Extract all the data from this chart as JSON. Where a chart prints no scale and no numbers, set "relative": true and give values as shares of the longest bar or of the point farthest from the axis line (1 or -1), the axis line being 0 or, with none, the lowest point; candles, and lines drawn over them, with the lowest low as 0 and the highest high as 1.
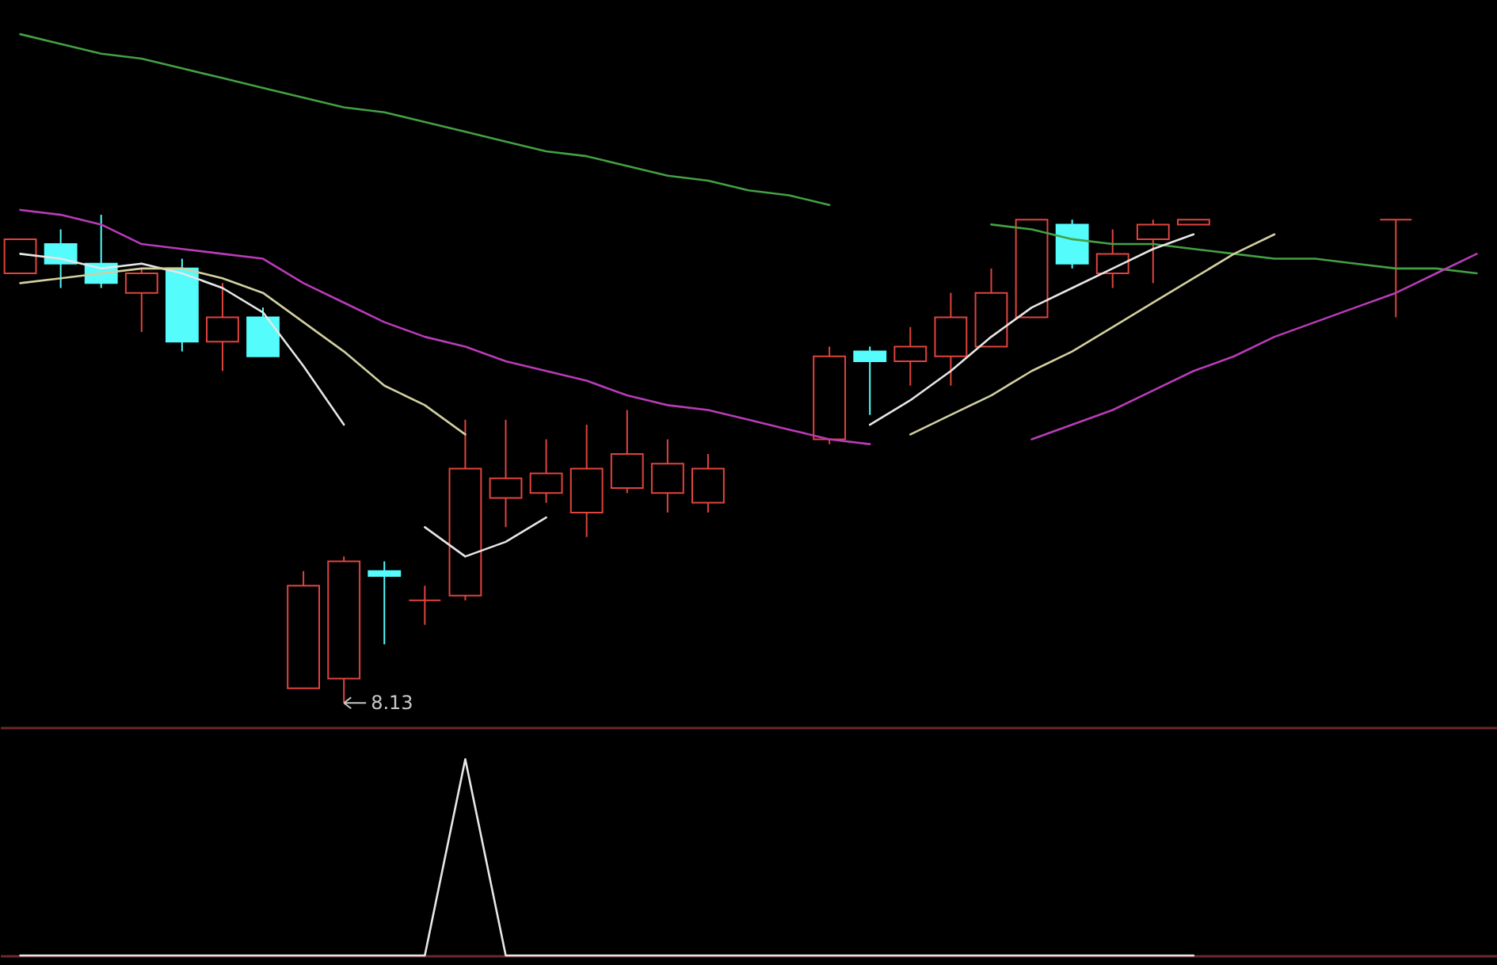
{
  "chart_data": [
    {
      "type": "candlestick",
      "relative": true,
      "ylim": [
        -0.05,
        1.44
      ],
      "categories": [
        null,
        null,
        null,
        null,
        null,
        null,
        null,
        null,
        null,
        null,
        null,
        null,
        null,
        null,
        null,
        null,
        null,
        null,
        null,
        null,
        null,
        null,
        null,
        null,
        null,
        null,
        null,
        null,
        null,
        null,
        null,
        null,
        null,
        null,
        null,
        null,
        null
      ],
      "ohlc": [
        [
          0.88,
          0.95,
          0.88,
          0.95
        ],
        [
          0.94,
          0.97,
          0.85,
          0.9
        ],
        [
          0.9,
          1.0,
          0.85,
          0.86
        ],
        [
          0.84,
          0.89,
          0.76,
          0.88
        ],
        [
          0.89,
          0.91,
          0.72,
          0.74
        ],
        [
          0.74,
          0.86,
          0.68,
          0.79
        ],
        [
          0.79,
          0.81,
          0.71,
          0.71
        ],
        [
          0.03,
          0.27,
          0.03,
          0.24
        ],
        [
          0.05,
          0.3,
          0,
          0.29
        ],
        [
          0.27,
          0.29,
          0.12,
          0.26
        ],
        [
          0.21,
          0.24,
          0.16,
          0.21
        ],
        [
          0.22,
          0.58,
          0.21,
          0.48
        ],
        [
          0.42,
          0.58,
          0.36,
          0.46
        ],
        [
          0.43,
          0.54,
          0.41,
          0.47
        ],
        [
          0.39,
          0.57,
          0.34,
          0.48
        ],
        [
          0.44,
          0.6,
          0.43,
          0.51
        ],
        [
          0.43,
          0.54,
          0.39,
          0.49
        ],
        [
          0.41,
          0.51,
          0.39,
          0.48
        ],
        null,
        null,
        [
          0.54,
          0.73,
          0.53,
          0.71
        ],
        [
          0.72,
          0.73,
          0.59,
          0.7
        ],
        [
          0.7,
          0.77,
          0.65,
          0.73
        ],
        [
          0.71,
          0.84,
          0.65,
          0.79
        ],
        [
          0.73,
          0.89,
          0.73,
          0.84
        ],
        [
          0.79,
          0.99,
          0.79,
          0.99
        ],
        [
          0.98,
          0.99,
          0.89,
          0.9
        ],
        [
          0.88,
          0.97,
          0.85,
          0.92
        ],
        [
          0.95,
          0.99,
          0.86,
          0.98
        ],
        [
          0.98,
          0.99,
          0.98,
          0.99
        ],
        null,
        null,
        null,
        null,
        [
          0.99,
          0.99,
          0.79,
          0.99
        ],
        null,
        null
      ],
      "colors": [
        "#e0443e",
        "#54fcfc",
        "#54fcfc",
        "#e0443e",
        "#54fcfc",
        "#e0443e",
        "#54fcfc",
        "#e0443e",
        "#e0443e",
        "#54fcfc",
        "#e0443e",
        "#e0443e",
        "#e0443e",
        "#e0443e",
        "#e0443e",
        "#e0443e",
        "#e0443e",
        "#e0443e",
        null,
        null,
        "#e0443e",
        "#54fcfc",
        "#e0443e",
        "#e0443e",
        "#e0443e",
        "#e0443e",
        "#54fcfc",
        "#e0443e",
        "#e0443e",
        "#e0443e",
        null,
        null,
        null,
        null,
        "#e0443e",
        null,
        null
      ],
      "series": [
        {
          "type": "line",
          "color": "#45a045",
          "values": [
            1.37,
            1.35,
            1.33,
            1.32,
            1.3,
            1.28,
            1.26,
            1.24,
            1.22,
            1.21,
            1.19,
            1.17,
            1.15,
            1.13,
            1.12,
            1.1,
            1.08,
            1.07,
            1.05,
            1.04,
            1.02,
            null,
            null,
            null,
            0.98,
            0.97,
            0.95,
            0.94,
            0.94,
            0.93,
            0.92,
            0.91,
            0.91,
            0.9,
            0.89,
            0.89,
            0.88
          ]
        },
        {
          "type": "line",
          "color": "#b83cb8",
          "values": [
            1.01,
            1.0,
            0.98,
            0.94,
            0.93,
            0.92,
            0.91,
            0.86,
            0.82,
            0.78,
            0.75,
            0.73,
            0.7,
            0.68,
            0.66,
            0.63,
            0.61,
            0.6,
            0.58,
            0.56,
            0.54,
            0.53,
            null,
            null,
            null,
            0.54,
            0.57,
            0.6,
            0.64,
            0.68,
            0.71,
            0.75,
            0.78,
            0.81,
            0.84,
            0.88,
            0.92
          ]
        },
        {
          "type": "line",
          "color": "#e6e6e6",
          "values": [
            0.92,
            0.91,
            0.89,
            0.9,
            0.88,
            0.85,
            0.8,
            0.69,
            0.57,
            null,
            0.36,
            0.3,
            0.33,
            0.38,
            null,
            null,
            null,
            null,
            null,
            null,
            null,
            0.57,
            0.62,
            0.68,
            0.75,
            0.81,
            0.85,
            0.89,
            0.93,
            0.96,
            null,
            null,
            null,
            null,
            null,
            null,
            null
          ]
        },
        {
          "type": "line",
          "color": "#d2d0a0",
          "values": [
            0.86,
            0.87,
            0.88,
            0.89,
            0.89,
            0.87,
            0.84,
            0.78,
            0.72,
            0.65,
            0.61,
            0.55,
            null,
            null,
            null,
            null,
            null,
            null,
            null,
            null,
            null,
            null,
            0.55,
            0.59,
            0.63,
            0.68,
            0.72,
            0.77,
            0.82,
            0.87,
            0.92,
            0.96,
            null,
            null,
            null,
            null,
            null
          ]
        }
      ],
      "annotations": [
        "8.13"
      ]
    },
    {
      "type": "line",
      "relative": true,
      "categories": [
        null,
        null,
        null,
        null,
        null,
        null,
        null,
        null,
        null,
        null,
        null,
        null,
        null,
        null,
        null,
        null,
        null,
        null,
        null,
        null,
        null,
        null,
        null,
        null,
        null,
        null,
        null,
        null,
        null,
        null,
        null,
        null,
        null,
        null,
        null,
        null,
        null
      ],
      "series": [
        {
          "color": "#e8e8e8",
          "values": [
            0,
            0,
            0,
            0,
            0,
            0,
            0,
            0,
            0,
            0,
            0,
            1,
            0,
            0,
            0,
            0,
            0,
            0,
            0,
            0,
            0,
            0,
            0,
            0,
            0,
            0,
            0,
            0,
            0,
            0,
            null,
            null,
            null,
            null,
            null,
            null,
            null
          ]
        }
      ]
    }
  ]
}
